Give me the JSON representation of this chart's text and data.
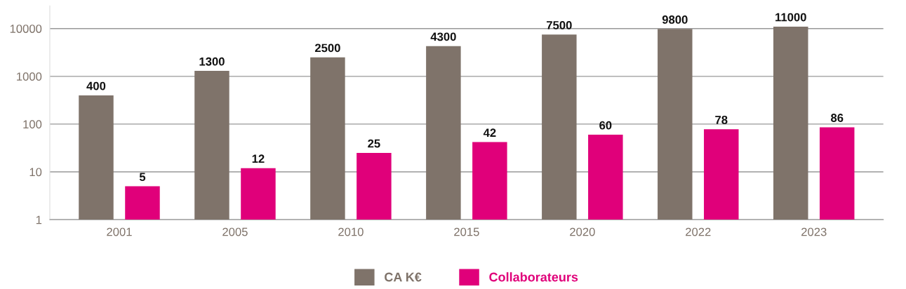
{
  "chart_data": {
    "type": "bar",
    "categories": [
      "2001",
      "2005",
      "2010",
      "2015",
      "2020",
      "2022",
      "2023"
    ],
    "series": [
      {
        "name": "CA K€",
        "color": "#7f736a",
        "values": [
          400,
          1300,
          2500,
          4300,
          7500,
          9800,
          11000
        ]
      },
      {
        "name": "Collaborateurs",
        "color": "#e0007a",
        "values": [
          5,
          12,
          25,
          42,
          60,
          78,
          86
        ]
      }
    ],
    "log": true,
    "ylim": [
      1,
      30000
    ],
    "yticks": [
      1,
      10,
      100,
      1000,
      10000
    ],
    "grid": "y",
    "legend": "bottom",
    "data_labels": true
  }
}
